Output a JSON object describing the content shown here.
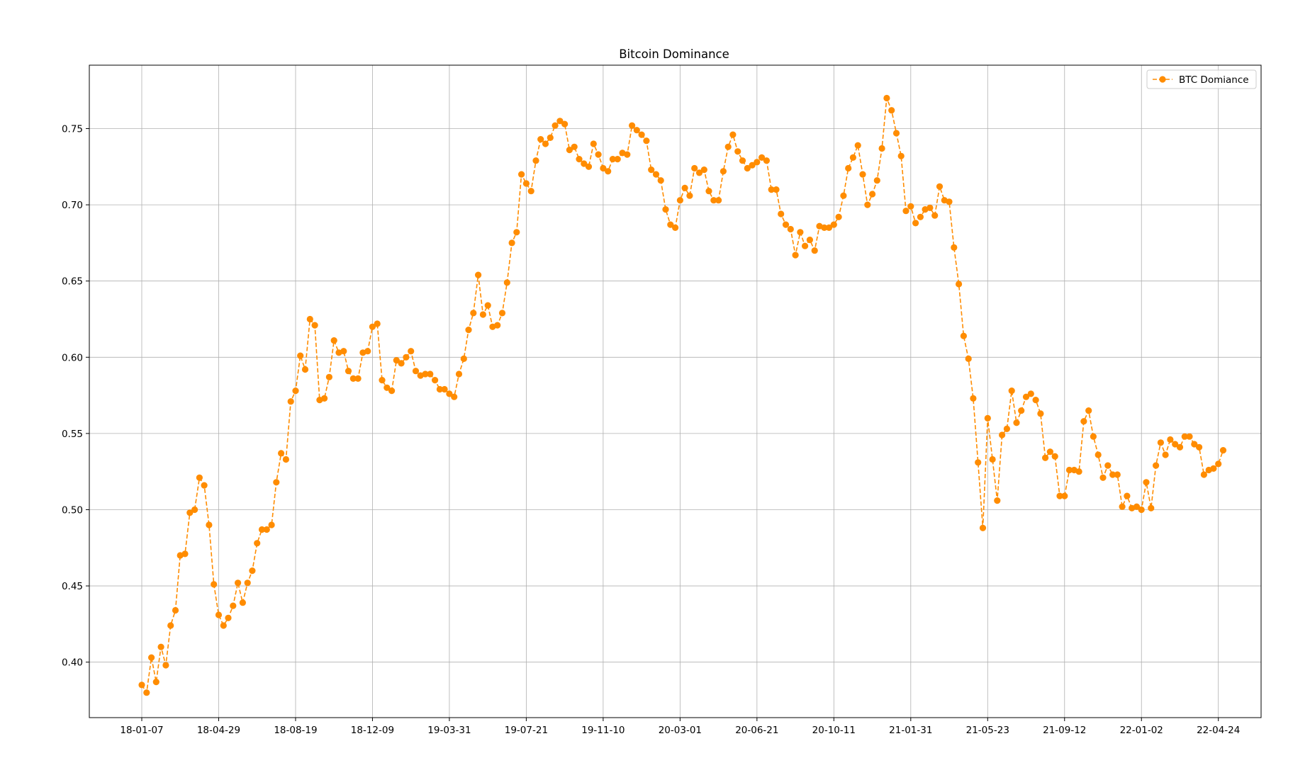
{
  "chart_data": {
    "type": "line",
    "title": "Bitcoin Dominance",
    "xlabel": "",
    "ylabel": "",
    "x_ticks": [
      "18-01-07",
      "18-04-29",
      "18-08-19",
      "18-12-09",
      "19-03-31",
      "19-07-21",
      "19-11-10",
      "20-03-01",
      "20-06-21",
      "20-10-11",
      "21-01-31",
      "21-05-23",
      "21-09-12",
      "22-01-02",
      "22-04-24"
    ],
    "ylim": [
      0.3636,
      0.7916
    ],
    "y_ticks": [
      0.4,
      0.45,
      0.5,
      0.55,
      0.6,
      0.65,
      0.7,
      0.75
    ],
    "grid": true,
    "legend_position": "top-right",
    "series": [
      {
        "name": "BTC Domiance",
        "color": "#ff8c00",
        "style": "dashed line with circle markers",
        "frequency": "weekly",
        "start": "18-01-07",
        "values": [
          0.385,
          0.38,
          0.403,
          0.387,
          0.41,
          0.398,
          0.424,
          0.434,
          0.47,
          0.471,
          0.498,
          0.5,
          0.521,
          0.516,
          0.49,
          0.451,
          0.431,
          0.424,
          0.429,
          0.437,
          0.452,
          0.439,
          0.452,
          0.46,
          0.478,
          0.487,
          0.487,
          0.49,
          0.518,
          0.537,
          0.533,
          0.571,
          0.578,
          0.601,
          0.592,
          0.625,
          0.621,
          0.572,
          0.573,
          0.587,
          0.611,
          0.603,
          0.604,
          0.591,
          0.586,
          0.586,
          0.603,
          0.604,
          0.62,
          0.622,
          0.585,
          0.58,
          0.578,
          0.598,
          0.596,
          0.6,
          0.604,
          0.591,
          0.588,
          0.589,
          0.589,
          0.585,
          0.579,
          0.579,
          0.576,
          0.574,
          0.589,
          0.599,
          0.618,
          0.629,
          0.654,
          0.628,
          0.634,
          0.62,
          0.621,
          0.629,
          0.649,
          0.675,
          0.682,
          0.72,
          0.714,
          0.709,
          0.729,
          0.743,
          0.74,
          0.744,
          0.752,
          0.755,
          0.753,
          0.736,
          0.738,
          0.73,
          0.727,
          0.725,
          0.74,
          0.733,
          0.724,
          0.722,
          0.73,
          0.73,
          0.734,
          0.733,
          0.752,
          0.749,
          0.746,
          0.742,
          0.723,
          0.72,
          0.716,
          0.697,
          0.687,
          0.685,
          0.703,
          0.711,
          0.706,
          0.724,
          0.721,
          0.723,
          0.709,
          0.703,
          0.703,
          0.722,
          0.738,
          0.746,
          0.735,
          0.729,
          0.724,
          0.726,
          0.728,
          0.731,
          0.729,
          0.71,
          0.71,
          0.694,
          0.687,
          0.684,
          0.667,
          0.682,
          0.673,
          0.677,
          0.67,
          0.686,
          0.685,
          0.685,
          0.687,
          0.692,
          0.706,
          0.724,
          0.731,
          0.739,
          0.72,
          0.7,
          0.707,
          0.716,
          0.737,
          0.77,
          0.762,
          0.747,
          0.732,
          0.696,
          0.699,
          0.688,
          0.692,
          0.697,
          0.698,
          0.693,
          0.712,
          0.703,
          0.702,
          0.672,
          0.648,
          0.614,
          0.599,
          0.573,
          0.531,
          0.488,
          0.56,
          0.533,
          0.506,
          0.549,
          0.553,
          0.578,
          0.557,
          0.565,
          0.574,
          0.576,
          0.572,
          0.563,
          0.534,
          0.538,
          0.535,
          0.509,
          0.509,
          0.526,
          0.526,
          0.525,
          0.558,
          0.565,
          0.548,
          0.536,
          0.521,
          0.529,
          0.523,
          0.523,
          0.502,
          0.509,
          0.501,
          0.502,
          0.5,
          0.518,
          0.501,
          0.529,
          0.544,
          0.536,
          0.546,
          0.543,
          0.541,
          0.548,
          0.548,
          0.543,
          0.541,
          0.523,
          0.526,
          0.527,
          0.53,
          0.539
        ]
      }
    ]
  }
}
